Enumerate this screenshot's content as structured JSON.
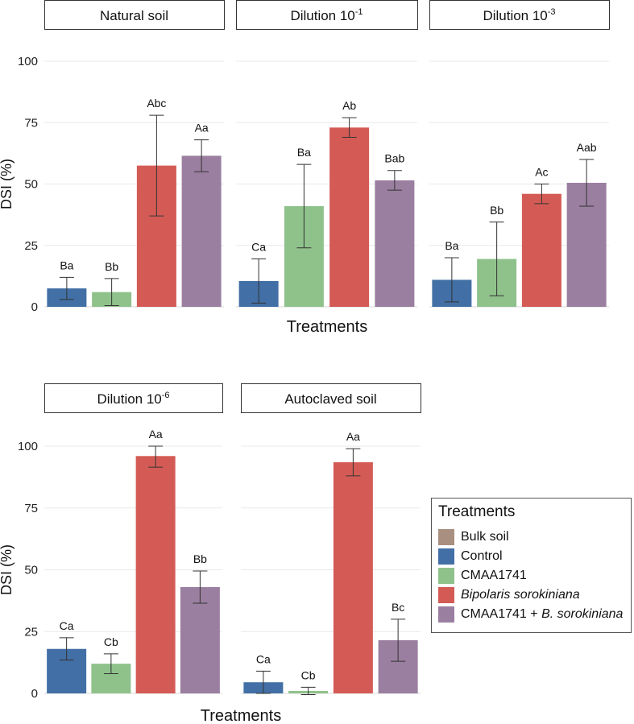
{
  "chart_data": {
    "type": "bar",
    "ylabel": "DSI (%)",
    "xlabel": "Treatments",
    "ylim": [
      0,
      100
    ],
    "yticks": [
      0,
      25,
      50,
      75,
      100
    ],
    "colors": {
      "Bulk soil": "#a88f80",
      "Control": "#426fa5",
      "CMAA1741": "#8fc28b",
      "Bipolaris sorokiniana": "#d45b55",
      "CMAA1741 + B. sorokiniana": "#9a7fa0"
    },
    "legend": {
      "title": "Treatments",
      "placement": "right",
      "items": [
        {
          "key": "Bulk soil",
          "label": "Bulk soil",
          "italic": false
        },
        {
          "key": "Control",
          "label": "Control",
          "italic": false
        },
        {
          "key": "CMAA1741",
          "label": "CMAA1741",
          "italic": false
        },
        {
          "key": "Bipolaris sorokiniana",
          "label": "Bipolaris sorokiniana",
          "italic": true
        },
        {
          "key": "CMAA1741 + B. sorokiniana",
          "label_prefix": "CMAA1741 + ",
          "label_italic": "B. sorokiniana",
          "label": "CMAA1741 + B. sorokiniana"
        }
      ]
    },
    "panels": [
      {
        "strip": "Natural soil",
        "strip_base": "",
        "strip_sup": "",
        "bars": [
          {
            "treatment": "Control",
            "value": 7.5,
            "err": 4.5,
            "label": "Ba"
          },
          {
            "treatment": "CMAA1741",
            "value": 6,
            "err": 5.5,
            "label": "Bb"
          },
          {
            "treatment": "Bipolaris sorokiniana",
            "value": 57.5,
            "err": 20.5,
            "label": "Abc"
          },
          {
            "treatment": "CMAA1741 + B. sorokiniana",
            "value": 61.5,
            "err": 6.5,
            "label": "Aa"
          }
        ]
      },
      {
        "strip": "Dilution 10-1",
        "strip_base": "Dilution 10",
        "strip_sup": "-1",
        "bars": [
          {
            "treatment": "Control",
            "value": 10.5,
            "err": 9.0,
            "label": "Ca"
          },
          {
            "treatment": "CMAA1741",
            "value": 41,
            "err": 17,
            "label": "Ba"
          },
          {
            "treatment": "Bipolaris sorokiniana",
            "value": 73,
            "err": 4,
            "label": "Ab"
          },
          {
            "treatment": "CMAA1741 + B. sorokiniana",
            "value": 51.5,
            "err": 4,
            "label": "Bab"
          }
        ]
      },
      {
        "strip": "Dilution 10-3",
        "strip_base": "Dilution 10",
        "strip_sup": "-3",
        "bars": [
          {
            "treatment": "Control",
            "value": 11,
            "err": 9,
            "label": "Ba"
          },
          {
            "treatment": "CMAA1741",
            "value": 19.5,
            "err": 15,
            "label": "Bb"
          },
          {
            "treatment": "Bipolaris sorokiniana",
            "value": 46,
            "err": 4,
            "label": "Ac"
          },
          {
            "treatment": "CMAA1741 + B. sorokiniana",
            "value": 50.5,
            "err": 9.5,
            "label": "Aab"
          }
        ]
      },
      {
        "strip": "Dilution 10-6",
        "strip_base": "Dilution 10",
        "strip_sup": "-6",
        "bars": [
          {
            "treatment": "Control",
            "value": 18,
            "err": 4.5,
            "label": "Ca"
          },
          {
            "treatment": "CMAA1741",
            "value": 12,
            "err": 4,
            "label": "Cb"
          },
          {
            "treatment": "Bipolaris sorokiniana",
            "value": 96,
            "err": 4.5,
            "label": "Aa"
          },
          {
            "treatment": "CMAA1741 + B. sorokiniana",
            "value": 43,
            "err": 6.5,
            "label": "Bb"
          }
        ]
      },
      {
        "strip": "Autoclaved soil",
        "strip_base": "",
        "strip_sup": "",
        "bars": [
          {
            "treatment": "Control",
            "value": 4.5,
            "err": 4.5,
            "label": "Ca"
          },
          {
            "treatment": "CMAA1741",
            "value": 1,
            "err": 1.5,
            "label": "Cb"
          },
          {
            "treatment": "Bipolaris sorokiniana",
            "value": 93.5,
            "err": 5.5,
            "label": "Aa"
          },
          {
            "treatment": "CMAA1741 + B. sorokiniana",
            "value": 21.5,
            "err": 8.5,
            "label": "Bc"
          }
        ]
      }
    ]
  }
}
